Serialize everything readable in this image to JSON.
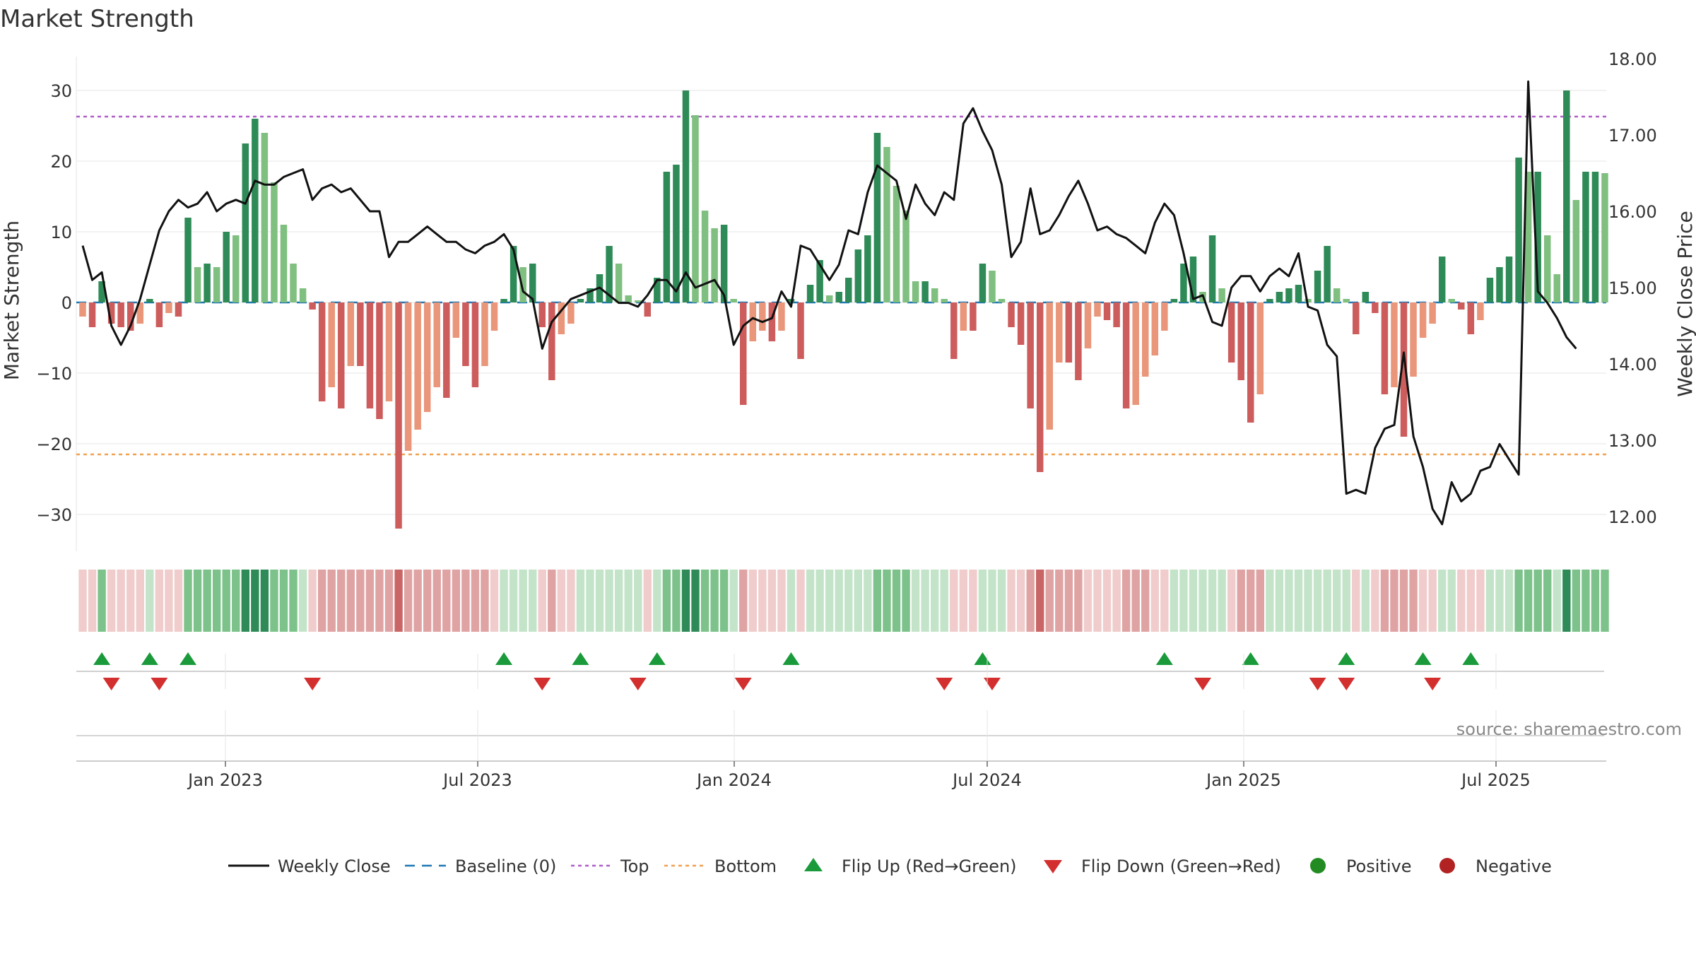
{
  "chart_data": {
    "type": "bar",
    "title": "Market Strength",
    "ylabel_left": "Market Strength",
    "ylabel_right": "Weekly Close Price",
    "source": "source: sharemaestro.com",
    "left_axis": {
      "ylim": [
        -35,
        35
      ],
      "ticks": [
        30,
        20,
        10,
        0,
        -10,
        -20,
        -30
      ],
      "tick_labels": [
        "30",
        "20",
        "10",
        "0",
        "−10",
        "−20",
        "−30"
      ]
    },
    "right_axis": {
      "ylim": [
        11.7,
        18.0
      ],
      "ticks": [
        18,
        17,
        16,
        15,
        14,
        13,
        12
      ],
      "tick_labels": [
        "18.00",
        "17.00",
        "16.00",
        "15.00",
        "14.00",
        "13.00",
        "12.00"
      ]
    },
    "x_ticks": [
      "Jan 2023",
      "Jul 2023",
      "Jan 2024",
      "Jul 2024",
      "Jan 2025",
      "Jul 2025"
    ],
    "top_line": 26.3,
    "bottom_line": -21.5,
    "strength": [
      -2,
      -3.5,
      3,
      -3,
      -3.5,
      -4,
      -3,
      0.5,
      -3.5,
      -1.5,
      -2,
      12,
      5,
      5.5,
      5,
      10,
      9.5,
      22.5,
      26,
      24,
      17,
      11,
      5.5,
      2,
      -1,
      -14,
      -12,
      -15,
      -9,
      -9,
      -15,
      -16.5,
      -14,
      -32,
      -21,
      -18,
      -15.5,
      -12,
      -13.5,
      -5,
      -9,
      -12,
      -9,
      -4,
      0.5,
      8,
      5,
      5.5,
      -3.5,
      -11,
      -4.5,
      -3,
      0.5,
      2,
      4,
      8,
      5.5,
      1,
      0.3,
      -2,
      3.5,
      18.5,
      19.5,
      30,
      26.5,
      13,
      10.5,
      11,
      0.5,
      -14.5,
      -5.5,
      -4,
      -5.5,
      -4,
      0.5,
      -8,
      2.5,
      6,
      1,
      1.5,
      3.5,
      7.5,
      9.5,
      24,
      22,
      16.5,
      13,
      3,
      3,
      2,
      0.5,
      -8,
      -4,
      -4,
      5.5,
      4.5,
      0.5,
      -3.5,
      -6,
      -15,
      -24,
      -18,
      -8.5,
      -8.5,
      -11,
      -6.5,
      -2,
      -2.5,
      -3.5,
      -15,
      -14.5,
      -10.5,
      -7.5,
      -4,
      0.5,
      5.5,
      6.5,
      1.5,
      9.5,
      2,
      -8.5,
      -11,
      -17,
      -13,
      0.5,
      1.5,
      2,
      2.5,
      0.5,
      4.5,
      8,
      2,
      0.5,
      -4.5,
      1.5,
      -1.5,
      -13,
      -12,
      -19,
      -10.5,
      -5,
      -3,
      6.5,
      0.5,
      -1,
      -4.5,
      -2.5,
      3.5,
      5,
      6.5,
      20.5,
      18.5,
      18.5,
      9.5,
      4,
      30,
      14.5,
      18.5,
      18.5,
      18.3
    ],
    "weekly_close": [
      15.55,
      15.1,
      15.2,
      14.5,
      14.25,
      14.5,
      14.85,
      15.3,
      15.75,
      16.0,
      16.15,
      16.05,
      16.1,
      16.25,
      16.0,
      16.1,
      16.15,
      16.1,
      16.4,
      16.35,
      16.35,
      16.45,
      16.5,
      16.55,
      16.15,
      16.3,
      16.35,
      16.25,
      16.3,
      16.15,
      16.0,
      16.0,
      15.4,
      15.6,
      15.6,
      15.7,
      15.8,
      15.7,
      15.6,
      15.6,
      15.5,
      15.45,
      15.55,
      15.6,
      15.7,
      15.5,
      14.95,
      14.85,
      14.2,
      14.55,
      14.7,
      14.85,
      14.9,
      14.95,
      15.0,
      14.9,
      14.8,
      14.8,
      14.75,
      14.9,
      15.1,
      15.1,
      14.95,
      15.2,
      15.0,
      15.05,
      15.1,
      14.9,
      14.25,
      14.5,
      14.6,
      14.55,
      14.6,
      14.95,
      14.75,
      15.55,
      15.5,
      15.3,
      15.1,
      15.3,
      15.75,
      15.7,
      16.25,
      16.6,
      16.5,
      16.4,
      15.9,
      16.35,
      16.1,
      15.95,
      16.25,
      16.15,
      17.15,
      17.35,
      17.05,
      16.8,
      16.35,
      15.4,
      15.6,
      16.3,
      15.7,
      15.75,
      15.95,
      16.2,
      16.4,
      16.1,
      15.75,
      15.8,
      15.7,
      15.65,
      15.55,
      15.45,
      15.85,
      16.1,
      15.95,
      15.45,
      14.85,
      14.9,
      14.55,
      14.5,
      15.0,
      15.15,
      15.15,
      14.95,
      15.15,
      15.25,
      15.15,
      15.45,
      14.75,
      14.7,
      14.25,
      14.1,
      12.3,
      12.35,
      12.3,
      12.9,
      13.15,
      13.2,
      14.15,
      13.05,
      12.65,
      12.1,
      11.9,
      12.45,
      12.2,
      12.3,
      12.6,
      12.65,
      12.95,
      12.75,
      12.55,
      17.7,
      14.95,
      14.8,
      14.6,
      14.35,
      14.2
    ],
    "band_levels": [
      -1,
      -1,
      2,
      -1,
      -1,
      -1,
      -1,
      1,
      -1,
      -1,
      -1,
      2,
      2,
      2,
      2,
      2,
      2,
      3,
      3,
      3,
      2,
      2,
      2,
      1,
      -1,
      -2,
      -2,
      -2,
      -2,
      -2,
      -2,
      -2,
      -2,
      -3,
      -2,
      -2,
      -2,
      -2,
      -2,
      -2,
      -2,
      -2,
      -2,
      -1,
      1,
      1,
      1,
      1,
      -1,
      -2,
      -1,
      -1,
      1,
      1,
      1,
      1,
      1,
      1,
      1,
      -1,
      1,
      2,
      2,
      3,
      3,
      2,
      2,
      2,
      1,
      -2,
      -1,
      -1,
      -1,
      -1,
      1,
      -1,
      1,
      1,
      1,
      1,
      1,
      1,
      1,
      2,
      2,
      2,
      2,
      1,
      1,
      1,
      1,
      -1,
      -1,
      -1,
      1,
      1,
      1,
      -1,
      -1,
      -2,
      -3,
      -2,
      -2,
      -2,
      -2,
      -1,
      -1,
      -1,
      -1,
      -2,
      -2,
      -2,
      -1,
      -1,
      1,
      1,
      1,
      1,
      1,
      1,
      -1,
      -2,
      -2,
      -2,
      1,
      1,
      1,
      1,
      1,
      1,
      1,
      1,
      1,
      -1,
      1,
      -1,
      -2,
      -2,
      -2,
      -2,
      -1,
      -1,
      1,
      1,
      -1,
      -1,
      -1,
      1,
      1,
      1,
      2,
      2,
      2,
      2,
      1,
      3,
      2,
      2,
      2,
      2
    ],
    "flip_up_weeks": [
      2,
      7,
      11,
      44,
      52,
      60,
      74,
      94,
      113,
      122,
      132,
      140,
      145
    ],
    "flip_down_weeks": [
      3,
      8,
      24,
      48,
      58,
      69,
      90,
      95,
      117,
      129,
      132,
      141
    ],
    "legend": [
      "Weekly Close",
      "Baseline (0)",
      "Top",
      "Bottom",
      "Flip Up (Red→Green)",
      "Flip Down (Green→Red)",
      "Positive",
      "Negative"
    ],
    "colors": {
      "pos_strong": "#2e8b57",
      "pos_light": "#7fbf7f",
      "neg_strong": "#cd5c5c",
      "neg_light": "#e9967a",
      "close_line": "#111111",
      "baseline": "#1f77b4",
      "top_line": "#b05cc9",
      "bottom_line": "#f0a050",
      "flip_up": "#1a9a3a",
      "flip_down": "#d32f2f",
      "positive_dot": "#228b22",
      "negative_dot": "#b22222"
    }
  }
}
